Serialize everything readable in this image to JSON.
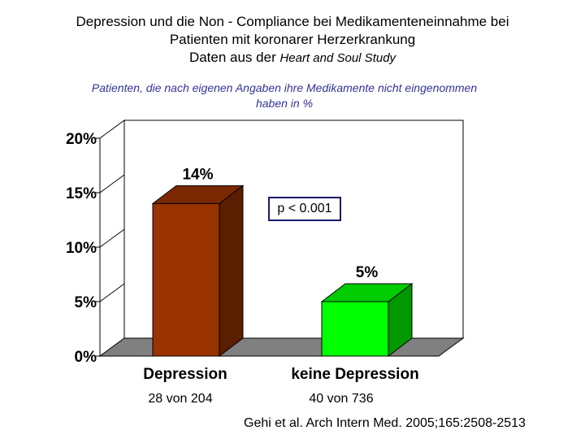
{
  "header": {
    "title_line1": "Depression und die Non - Compliance bei Medikamenteneinnahme bei",
    "title_line2": "Patienten mit koronarer Herzerkrankung",
    "title_line3_prefix": "Daten aus der ",
    "title_line3_italic": "Heart and Soul Study"
  },
  "subtitle_line1": "Patienten, die nach eigenen Angaben ihre Medikamente nicht eingenommen",
  "subtitle_line2": "haben in %",
  "p_value": "p < 0.001",
  "counts": [
    "28 von  204",
    "40 von 736"
  ],
  "citation": "Gehi et al. Arch Intern Med. 2005;165:2508-2513",
  "colors": {
    "depression_front": "#993300",
    "depression_side": "#5a1e00",
    "depression_top": "#7a2900",
    "keine_front": "#00ff00",
    "keine_side": "#009900",
    "keine_top": "#00cc00",
    "floor": "#808080"
  },
  "chart_data": {
    "type": "bar",
    "categories": [
      "Depression",
      "keine Depression"
    ],
    "values": [
      14,
      5
    ],
    "data_labels": [
      "14%",
      "5%"
    ],
    "yticks": [
      "0%",
      "5%",
      "10%",
      "15%",
      "20%"
    ],
    "ylim": [
      0,
      20
    ],
    "grid": false,
    "legend": "none"
  }
}
